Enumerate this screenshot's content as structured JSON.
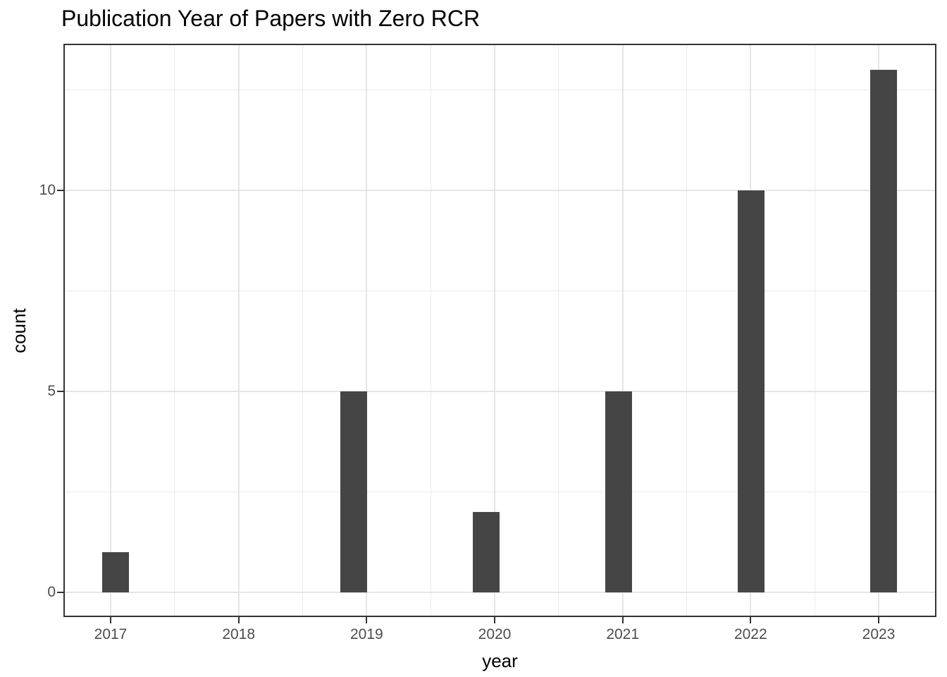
{
  "chart_data": {
    "type": "bar",
    "title": "Publication Year of Papers with Zero RCR",
    "xlabel": "year",
    "ylabel": "count",
    "categories": [
      "2017",
      "2018",
      "2019",
      "2020",
      "2021",
      "2022",
      "2023"
    ],
    "values": [
      1,
      0,
      5,
      2,
      5,
      10,
      13
    ],
    "yticks": [
      0,
      5,
      10
    ],
    "ylim": [
      -0.65,
      13.65
    ],
    "grid": "major+minor both axes",
    "legend": "none",
    "colors": {
      "bar_fill": "#454545",
      "panel_border": "#333333",
      "grid_major": "#e5e5e5",
      "grid_minor": "#ebebeb",
      "tick_label": "#4d4d4d",
      "text": "#000000",
      "background": "#ffffff"
    }
  }
}
